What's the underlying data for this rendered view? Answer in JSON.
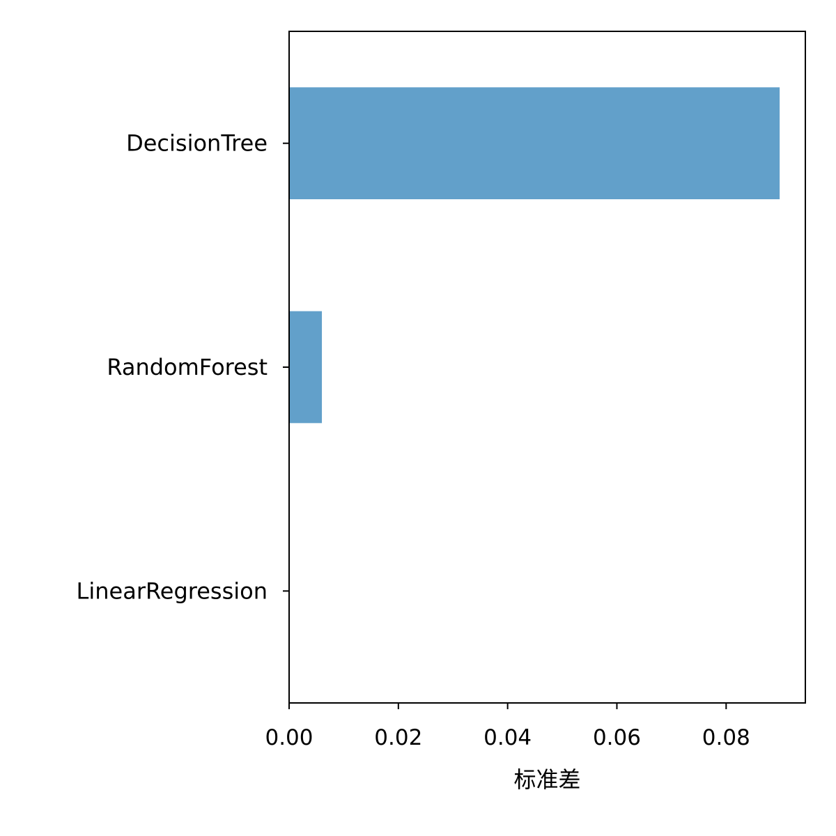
{
  "chart_data": {
    "type": "bar",
    "orientation": "horizontal",
    "categories": [
      "DecisionTree",
      "RandomForest",
      "LinearRegression"
    ],
    "values": [
      0.0898,
      0.006,
      0.0
    ],
    "xlabel": "标准差",
    "ylabel": "",
    "xlim": [
      0,
      0.0945
    ],
    "xticks": [
      0.0,
      0.02,
      0.04,
      0.06,
      0.08
    ],
    "xtick_labels": [
      "0.00",
      "0.02",
      "0.04",
      "0.06",
      "0.08"
    ],
    "bar_color": "#62a0ca",
    "grid": false,
    "legend": "none"
  }
}
